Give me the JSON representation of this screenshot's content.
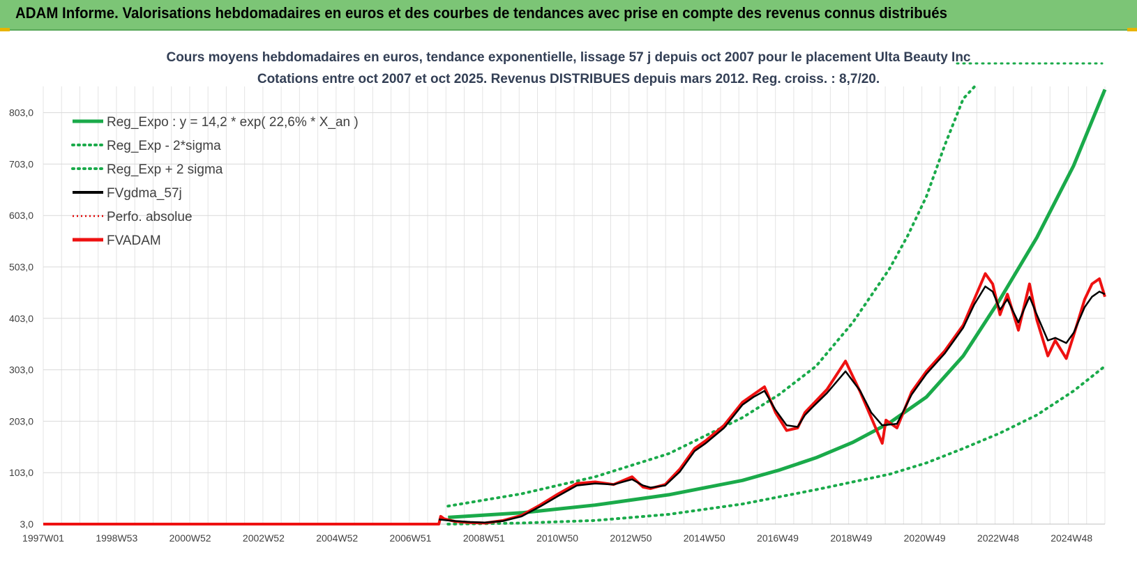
{
  "header": {
    "title": "ADAM Informe. Valorisations hebdomadaires en euros et des courbes de tendances avec prise en compte des revenus connus distribués"
  },
  "colors": {
    "header_bg": "#7cc576",
    "reg_expo": "#1aaa4a",
    "sigma": "#1aaa4a",
    "fvgdma": "#000000",
    "perfo": "#e00000",
    "fvadam": "#ee1111"
  },
  "chart_data": {
    "type": "line",
    "title_line1": "Cours moyens hebdomadaires en euros, tendance exponentielle, lissage 57 j depuis oct 2007 pour le placement Ulta Beauty Inc",
    "title_line2": "Cotations entre oct 2007 et oct 2025. Revenus DISTRIBUES depuis mars 2012. Reg. croiss. : 8,7/20.",
    "x_tick_labels": [
      "1997W01",
      "1998W53",
      "2000W52",
      "2002W52",
      "2004W52",
      "2006W51",
      "2008W51",
      "2010W50",
      "2012W50",
      "2014W50",
      "2016W49",
      "2018W49",
      "2020W49",
      "2022W48",
      "2024W48"
    ],
    "x_range": [
      1997.0,
      2025.85
    ],
    "y_tick_labels": [
      "3,0",
      "103,0",
      "203,0",
      "303,0",
      "403,0",
      "503,0",
      "603,0",
      "703,0",
      "803,0"
    ],
    "ylim": [
      3,
      853
    ],
    "grid": true,
    "legend_position": "top-left",
    "legend": [
      {
        "key": "reg",
        "label": "Reg_Expo : y = 14,2 * exp( 22,6% *  X_an )"
      },
      {
        "key": "minus",
        "label": "Reg_Exp - 2*sigma"
      },
      {
        "key": "plus",
        "label": "Reg_Exp + 2 sigma"
      },
      {
        "key": "gdma",
        "label": "FVgdma_57j"
      },
      {
        "key": "perfo",
        "label": "Perfo. absolue"
      },
      {
        "key": "adam",
        "label": "FVADAM"
      }
    ],
    "series": [
      {
        "name": "FVADAM",
        "x": [
          1997.0,
          2007.75,
          2007.8,
          2007.9,
          2008.2,
          2008.6,
          2009.0,
          2009.5,
          2010.0,
          2010.5,
          2011.0,
          2011.5,
          2012.0,
          2012.5,
          2013.0,
          2013.3,
          2013.5,
          2013.9,
          2014.3,
          2014.7,
          2015.0,
          2015.5,
          2016.0,
          2016.3,
          2016.6,
          2016.9,
          2017.2,
          2017.5,
          2017.7,
          2017.9,
          2018.3,
          2018.8,
          2019.2,
          2019.5,
          2019.8,
          2019.9,
          2020.2,
          2020.6,
          2021.0,
          2021.5,
          2022.0,
          2022.3,
          2022.6,
          2022.8,
          2023.0,
          2023.2,
          2023.5,
          2023.8,
          2024.0,
          2024.3,
          2024.5,
          2024.8,
          2025.0,
          2025.3,
          2025.5,
          2025.7,
          2025.85
        ],
        "y": [
          3,
          3,
          18,
          13,
          8,
          6,
          5,
          10,
          20,
          40,
          62,
          82,
          85,
          80,
          95,
          75,
          72,
          80,
          110,
          150,
          165,
          195,
          240,
          255,
          270,
          220,
          185,
          190,
          220,
          235,
          265,
          320,
          260,
          210,
          160,
          205,
          190,
          260,
          300,
          340,
          390,
          440,
          490,
          470,
          410,
          450,
          380,
          470,
          400,
          330,
          360,
          325,
          370,
          440,
          470,
          480,
          445
        ]
      },
      {
        "name": "FVgdma_57j",
        "x": [
          2007.75,
          2008.2,
          2008.6,
          2009.0,
          2009.5,
          2010.0,
          2010.5,
          2011.0,
          2011.5,
          2012.0,
          2012.5,
          2013.0,
          2013.3,
          2013.5,
          2013.9,
          2014.3,
          2014.7,
          2015.0,
          2015.5,
          2016.0,
          2016.3,
          2016.6,
          2016.9,
          2017.2,
          2017.5,
          2017.7,
          2017.9,
          2018.3,
          2018.8,
          2019.2,
          2019.5,
          2019.8,
          2020.2,
          2020.6,
          2021.0,
          2021.5,
          2022.0,
          2022.3,
          2022.6,
          2022.8,
          2023.0,
          2023.2,
          2023.5,
          2023.8,
          2024.0,
          2024.3,
          2024.5,
          2024.8,
          2025.0,
          2025.3,
          2025.5,
          2025.7,
          2025.85
        ],
        "y": [
          12,
          9,
          7,
          6,
          9,
          18,
          37,
          58,
          78,
          82,
          80,
          90,
          78,
          74,
          78,
          105,
          145,
          160,
          190,
          235,
          250,
          262,
          225,
          195,
          192,
          215,
          230,
          258,
          300,
          262,
          220,
          195,
          198,
          255,
          295,
          335,
          385,
          430,
          465,
          455,
          420,
          440,
          395,
          445,
          410,
          360,
          365,
          355,
          375,
          425,
          445,
          455,
          450
        ]
      },
      {
        "name": "Reg_Expo : y = 14,2 * exp( 22,6% *  X_an )",
        "x": [
          2008.0,
          2010.0,
          2012.0,
          2014.0,
          2016.0,
          2017.0,
          2018.0,
          2019.0,
          2020.0,
          2021.0,
          2022.0,
          2023.0,
          2024.0,
          2025.0,
          2025.85
        ],
        "y": [
          16,
          25,
          40,
          60,
          88,
          108,
          132,
          162,
          200,
          250,
          330,
          440,
          560,
          700,
          848
        ]
      },
      {
        "name": "Reg_Exp - 2*sigma",
        "x": [
          2008.0,
          2010.0,
          2012.0,
          2014.0,
          2016.0,
          2018.0,
          2020.0,
          2021.0,
          2022.0,
          2023.0,
          2024.0,
          2025.0,
          2025.85
        ],
        "y": [
          3,
          5,
          10,
          22,
          42,
          70,
          100,
          122,
          150,
          180,
          215,
          262,
          310
        ]
      },
      {
        "name": "Reg_Exp + 2 sigma",
        "x": [
          2008.0,
          2010.0,
          2012.0,
          2014.0,
          2016.0,
          2017.0,
          2018.0,
          2019.0,
          2020.0,
          2020.5,
          2021.0,
          2021.5,
          2022.0,
          2022.3
        ],
        "y": [
          38,
          62,
          95,
          140,
          210,
          255,
          310,
          395,
          500,
          565,
          640,
          740,
          830,
          853
        ]
      },
      {
        "name": "Perfo. absolue",
        "x": [
          1997.0,
          2007.75
        ],
        "y": [
          3,
          3
        ]
      }
    ]
  }
}
